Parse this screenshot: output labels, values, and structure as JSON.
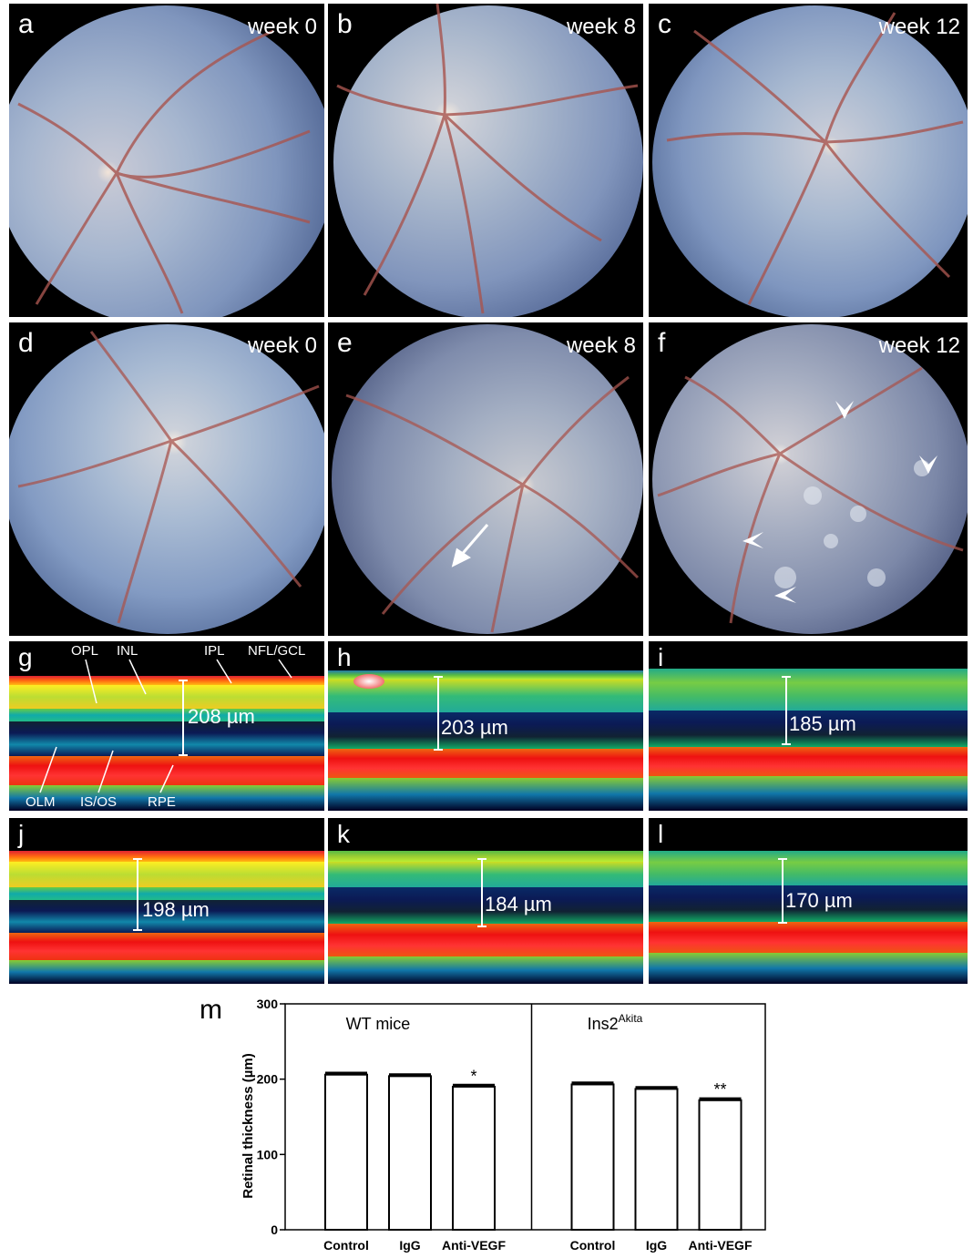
{
  "fundus_panels": [
    {
      "id": "a",
      "letter": "a",
      "week": "week 0"
    },
    {
      "id": "b",
      "letter": "b",
      "week": "week 8"
    },
    {
      "id": "c",
      "letter": "c",
      "week": "week 12"
    },
    {
      "id": "d",
      "letter": "d",
      "week": "week 0"
    },
    {
      "id": "e",
      "letter": "e",
      "week": "week 8"
    },
    {
      "id": "f",
      "letter": "f",
      "week": "week 12"
    }
  ],
  "oct_panels": [
    {
      "id": "g",
      "letter": "g",
      "thickness": "208 µm"
    },
    {
      "id": "h",
      "letter": "h",
      "thickness": "203 µm"
    },
    {
      "id": "i",
      "letter": "i",
      "thickness": "185 µm"
    },
    {
      "id": "j",
      "letter": "j",
      "thickness": "198 µm"
    },
    {
      "id": "k",
      "letter": "k",
      "thickness": "184 µm"
    },
    {
      "id": "l",
      "letter": "l",
      "thickness": "170 µm"
    }
  ],
  "layer_labels": {
    "opl": "OPL",
    "inl": "INL",
    "ipl": "IPL",
    "nfl_gcl": "NFL/GCL",
    "olm": "OLM",
    "is_os": "IS/OS",
    "rpe": "RPE"
  },
  "chart_letter": "m",
  "chart_data": {
    "type": "bar",
    "categories": [
      "Control",
      "IgG",
      "Anti-VEGF",
      "Control",
      "IgG",
      "Anti-VEGF"
    ],
    "values": [
      206,
      204,
      190,
      193,
      187,
      172
    ],
    "errors": [
      2,
      2,
      2,
      2,
      2,
      2
    ],
    "groups": [
      {
        "label": "WT mice",
        "categories": [
          0,
          1,
          2
        ]
      },
      {
        "label_main": "Ins2",
        "label_sup": "Akita",
        "categories": [
          3,
          4,
          5
        ]
      }
    ],
    "significance": [
      "",
      "",
      "*",
      "",
      "",
      "**"
    ],
    "ylabel": "Retinal thickness (µm)",
    "ylim": [
      0,
      300
    ],
    "yticks": [
      "0",
      "100",
      "200",
      "300"
    ],
    "colors": {
      "bar_fill": "#ffffff",
      "bar_stroke": "#000000"
    }
  }
}
